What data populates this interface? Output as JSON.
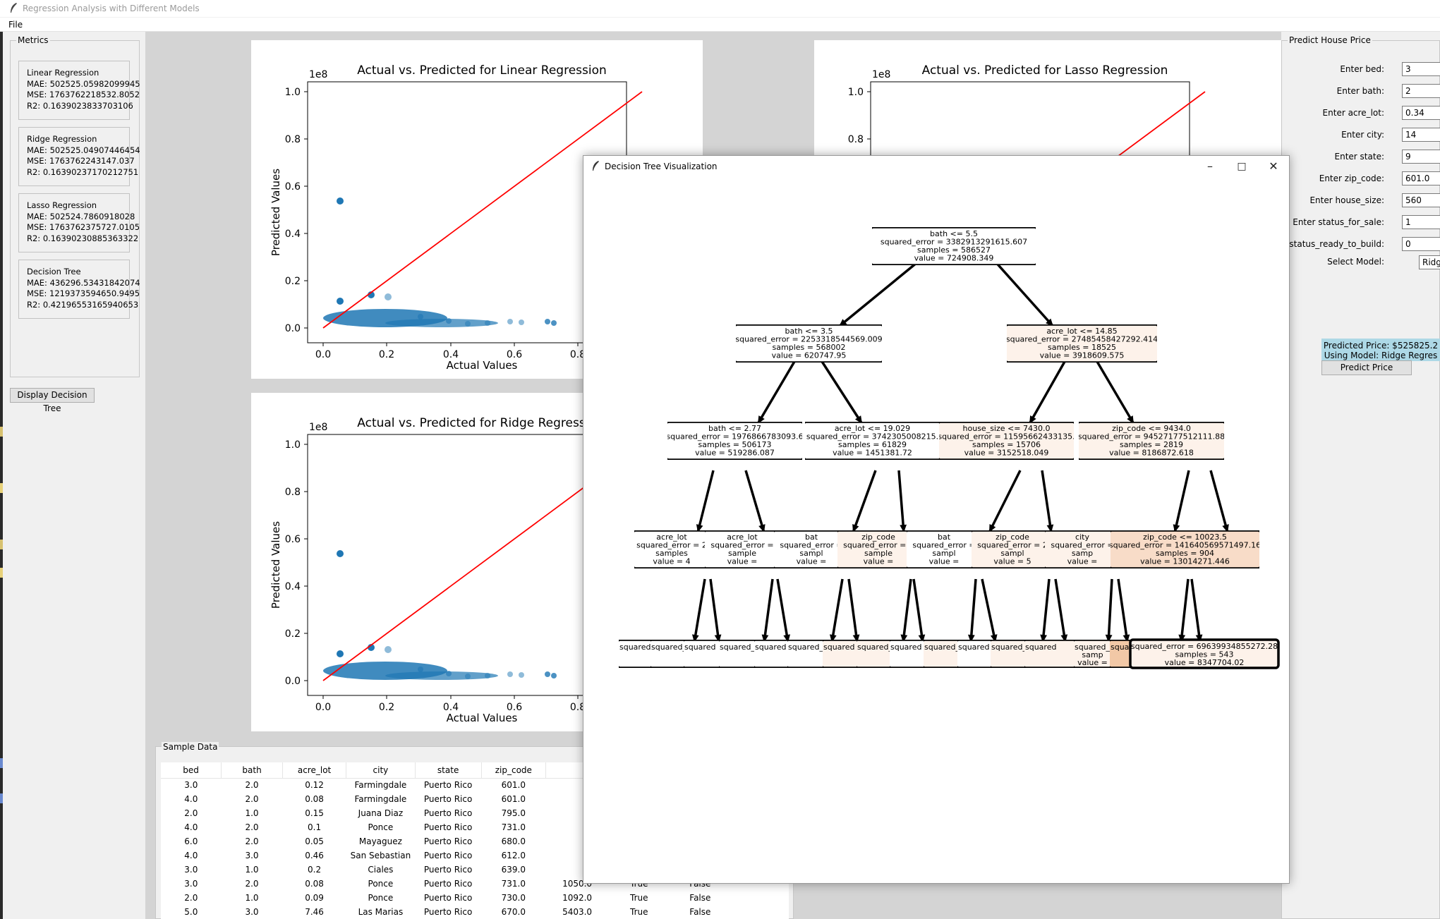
{
  "app": {
    "title": "Regression Analysis with Different Models",
    "menu": [
      "File"
    ]
  },
  "metrics": {
    "title": "Metrics",
    "models": [
      {
        "name": "Linear Regression",
        "mae": "MAE: 502525.05982099945",
        "mse": "MSE: 1763762218532.8052",
        "r2": "R2: 0.1639023833703106"
      },
      {
        "name": "Ridge Regression",
        "mae": "MAE: 502525.04907446454",
        "mse": "MSE: 1763762243147.037",
        "r2": "R2: 0.16390237170212751"
      },
      {
        "name": "Lasso Regression",
        "mae": "MAE: 502524.7860918028",
        "mse": "MSE: 1763762375727.0105",
        "r2": "R2: 0.16390230885363322"
      },
      {
        "name": "Decision Tree",
        "mae": "MAE: 436296.53431842074",
        "mse": "MSE: 1219373594650.9495",
        "r2": "R2: 0.42196553165940653"
      }
    ]
  },
  "display_tree_button": "Display Decision Tree",
  "plots": {
    "linear": {
      "title": "Actual vs. Predicted for Linear Regression",
      "xlabel": "Actual Values",
      "ylabel": "Predicted Values",
      "offset": "1e8",
      "yticks": [
        "0.0",
        "0.2",
        "0.4",
        "0.6",
        "0.8",
        "1.0"
      ],
      "xticks": [
        "0.0",
        "0.2",
        "0.4",
        "0.6",
        "0.8"
      ]
    },
    "lasso": {
      "title": "Actual vs. Predicted for Lasso Regression",
      "offset": "1e8",
      "yticks": [
        "0.8",
        "1.0"
      ]
    },
    "ridge": {
      "title": "Actual vs. Predicted for Ridge Regress",
      "xlabel": "Actual Values",
      "ylabel": "Predicted Values",
      "offset": "1e8",
      "yticks": [
        "0.0",
        "0.2",
        "0.4",
        "0.6",
        "0.8",
        "1.0"
      ],
      "xticks": [
        "0.0",
        "0.2",
        "0.4",
        "0.6",
        "0.8"
      ]
    }
  },
  "sample": {
    "title": "Sample Data",
    "columns": [
      "bed",
      "bath",
      "acre_lot",
      "city",
      "state",
      "zip_code",
      "",
      "",
      "",
      ""
    ],
    "rows": [
      [
        "3.0",
        "2.0",
        "0.12",
        "Farmingdale",
        "Puerto Rico",
        "601.0",
        "",
        "",
        "",
        ""
      ],
      [
        "4.0",
        "2.0",
        "0.08",
        "Farmingdale",
        "Puerto Rico",
        "601.0",
        "",
        "",
        "",
        ""
      ],
      [
        "2.0",
        "1.0",
        "0.15",
        "Juana Diaz",
        "Puerto Rico",
        "795.0",
        "",
        "",
        "",
        ""
      ],
      [
        "4.0",
        "2.0",
        "0.1",
        "Ponce",
        "Puerto Rico",
        "731.0",
        "",
        "",
        "",
        ""
      ],
      [
        "6.0",
        "2.0",
        "0.05",
        "Mayaguez",
        "Puerto Rico",
        "680.0",
        "",
        "",
        "",
        ""
      ],
      [
        "4.0",
        "3.0",
        "0.46",
        "San Sebastian",
        "Puerto Rico",
        "612.0",
        "",
        "",
        "",
        ""
      ],
      [
        "3.0",
        "1.0",
        "0.2",
        "Ciales",
        "Puerto Rico",
        "639.0",
        "",
        "",
        "",
        ""
      ],
      [
        "3.0",
        "2.0",
        "0.08",
        "Ponce",
        "Puerto Rico",
        "731.0",
        "1050.0",
        "True",
        "False",
        ""
      ],
      [
        "2.0",
        "1.0",
        "0.09",
        "Ponce",
        "Puerto Rico",
        "730.0",
        "1092.0",
        "True",
        "False",
        ""
      ],
      [
        "5.0",
        "3.0",
        "7.46",
        "Las Marias",
        "Puerto Rico",
        "670.0",
        "5403.0",
        "True",
        "False",
        ""
      ]
    ]
  },
  "predict": {
    "title": "Predict House Price",
    "fields": [
      {
        "label": "Enter bed:",
        "value": "3"
      },
      {
        "label": "Enter bath:",
        "value": "2"
      },
      {
        "label": "Enter acre_lot:",
        "value": "0.34"
      },
      {
        "label": "Enter city:",
        "value": "14"
      },
      {
        "label": "Enter state:",
        "value": "9"
      },
      {
        "label": "Enter zip_code:",
        "value": "601.0"
      },
      {
        "label": "Enter house_size:",
        "value": "560"
      },
      {
        "label": "Enter status_for_sale:",
        "value": "1"
      },
      {
        "label": "Enter status_ready_to_build:",
        "value": "0"
      }
    ],
    "model_label": "Select Model:",
    "model_value": "Ridge",
    "result_price": "Predicted Price: $525825.2",
    "result_model": "Using Model: Ridge Regres",
    "button": "Predict Price"
  },
  "tree_window": {
    "title": "Decision Tree Visualization",
    "nodes": {
      "root": [
        "bath <= 5.5",
        "squared_error = 3382913291615.607",
        "samples = 586527",
        "value = 724908.349"
      ],
      "L": [
        "bath <= 3.5",
        "squared_error = 2253318544569.009",
        "samples = 568002",
        "value = 620747.95"
      ],
      "R": [
        "acre_lot <= 14.85",
        "squared_error = 27485458427292.414",
        "samples = 18525",
        "value = 3918609.575"
      ],
      "LL": [
        "bath <= 2.77",
        "squared_error = 1976866783093.6",
        "samples = 506173",
        "value = 519286.087"
      ],
      "LR": [
        "acre_lot <= 19.029",
        "squared_error = 3742305008215.",
        "samples = 61829",
        "value = 1451381.72"
      ],
      "RL": [
        "house_size <= 7430.0",
        "squared_error = 11595662433135.",
        "samples = 15706",
        "value = 3152518.049"
      ],
      "RR": [
        "zip_code <= 9434.0",
        "squared_error = 94527177512111.88",
        "samples = 2819",
        "value = 8186872.618"
      ],
      "l3_1": [
        "acre_lot",
        "squared_error = 2",
        "samples",
        "value = 4"
      ],
      "l3_2": [
        "acre_lot",
        "squared_error =",
        "sample",
        "value ="
      ],
      "l3_3": [
        "bat",
        "squared_error =",
        "sampl",
        "value ="
      ],
      "l3_4": [
        "zip_code",
        "squared_error = 1",
        "sample",
        "value ="
      ],
      "l3_5": [
        "bat",
        "squared_error =",
        "sampl",
        "value ="
      ],
      "l3_6": [
        "zip_code",
        "squared_error = 2",
        "sampl",
        "value = 5"
      ],
      "l3_7": [
        "city",
        "squared_error =",
        "samp",
        "value ="
      ],
      "l3_8": [
        "zip_code <= 10023.5",
        "squared_error = 141640569571497.16",
        "samples = 904",
        "value = 13014271.446"
      ],
      "l4_a": "squared",
      "l4_b": "squared_",
      "l4_c": "squared_error =",
      "l4_c2": "samp",
      "l4_c3": "value =",
      "l4_last": [
        "squared_error = 69639934855272.28",
        "samples = 543",
        "value = 8347704.02"
      ]
    }
  },
  "colors": {
    "scatter": "#1f77b4",
    "diagonal": "#ff0000",
    "accent": "#add8e6",
    "node_light": "#fdf2ea",
    "node_mid": "#f8dcc8",
    "node_strong": "#f2c8a6"
  }
}
